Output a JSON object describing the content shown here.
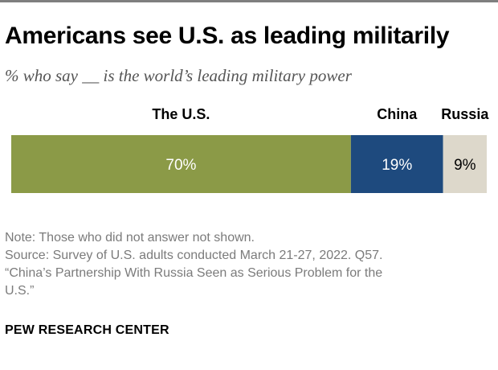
{
  "header": {
    "title": "Americans see U.S. as leading militarily",
    "subtitle": "% who say __ is the world’s leading military power"
  },
  "chart_data": {
    "type": "bar",
    "orientation": "horizontal-stacked",
    "title": "Americans see U.S. as leading militarily",
    "subtitle": "% who say __ is the world’s leading military power",
    "categories": [
      "The U.S.",
      "China",
      "Russia"
    ],
    "values": [
      70,
      19,
      9
    ],
    "value_labels": [
      "70%",
      "19%",
      "9%"
    ],
    "colors": [
      "#8b9a47",
      "#1e4a7e",
      "#ddd8cb"
    ],
    "label_colors": [
      "#ffffff",
      "#ffffff",
      "#000000"
    ],
    "unit": "%",
    "xlim": [
      0,
      100
    ],
    "xlabel": "",
    "ylabel": "",
    "grid": false,
    "legend": "labels above bar segments"
  },
  "footer": {
    "note": "Note: Those who did not answer not shown.",
    "source_lines": [
      "Source: Survey of U.S. adults conducted March 21-27, 2022. Q57.",
      "“China’s Partnership With Russia Seen as Serious Problem for the",
      "U.S.”"
    ],
    "org": "PEW RESEARCH CENTER"
  },
  "colors": {
    "rule": "#7f7f7f",
    "footnote_text": "#7b7b7b"
  }
}
